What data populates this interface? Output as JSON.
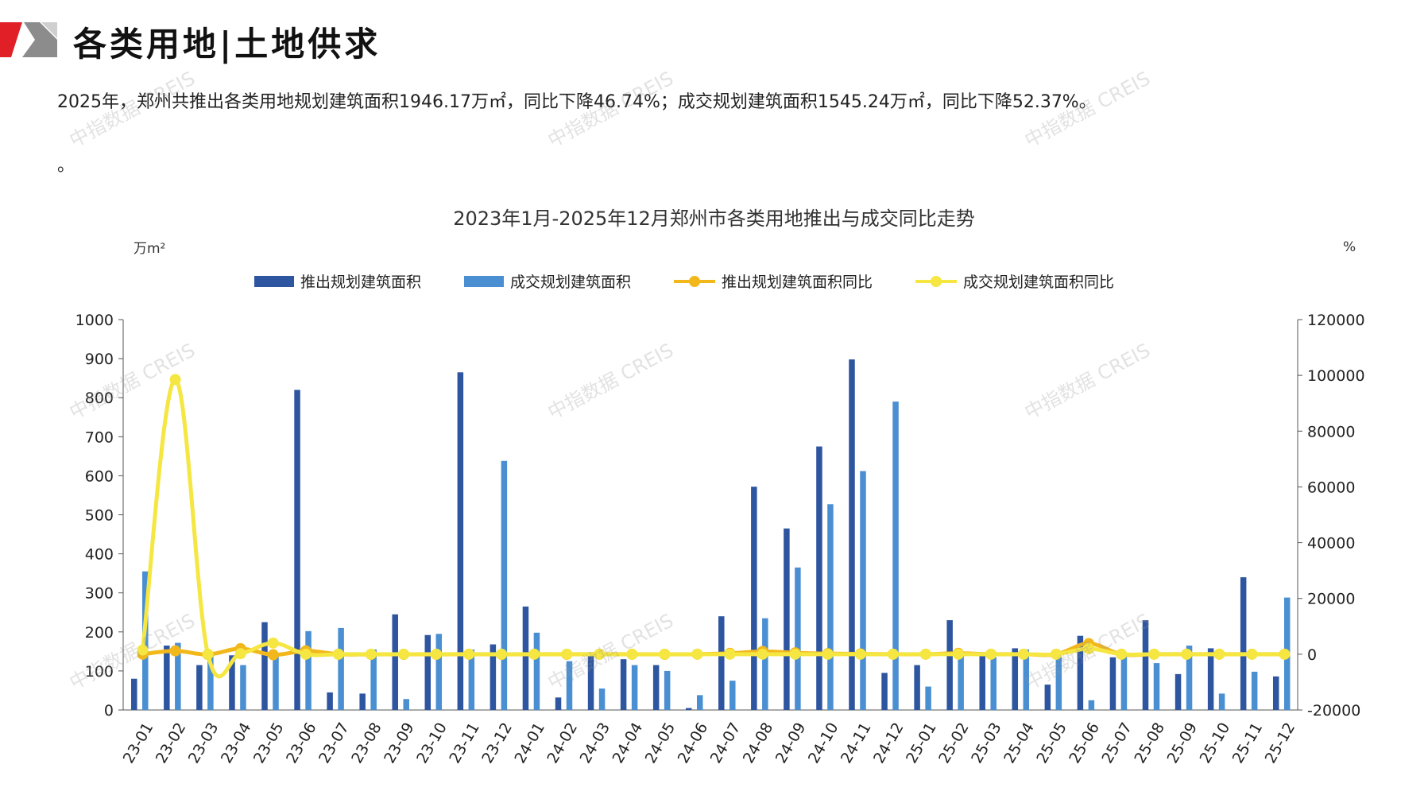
{
  "page": {
    "heading": "各类用地|土地供求",
    "summary": "2025年，郑州共推出各类用地规划建筑面积1946.17万㎡，同比下降46.74%；成交规划建筑面积1545.24万㎡，同比下降52.37%。",
    "dot_line": "。",
    "watermark": "中指数据 CREIS",
    "brand_colors": {
      "red": "#e01f26",
      "gray": "#7f7f7f",
      "light_gray": "#c8c8c8"
    }
  },
  "chart_data": {
    "type": "bar",
    "title": "2023年1月-2025年12月郑州市各类用地推出与成交同比走势",
    "y_left_unit": "万m²",
    "y_right_unit": "%",
    "ylim_left": [
      0,
      1000
    ],
    "yticks_left": [
      "0",
      "100",
      "200",
      "300",
      "400",
      "500",
      "600",
      "700",
      "800",
      "900",
      "1000"
    ],
    "ylim_right": [
      -20000,
      120000
    ],
    "yticks_right": [
      "-20000",
      "0",
      "20000",
      "40000",
      "60000",
      "80000",
      "100000",
      "120000"
    ],
    "grid": false,
    "legend_position": "top",
    "categories": [
      "23-01",
      "23-02",
      "23-03",
      "23-04",
      "23-05",
      "23-06",
      "23-07",
      "23-08",
      "23-09",
      "23-10",
      "23-11",
      "23-12",
      "24-01",
      "24-02",
      "24-03",
      "24-04",
      "24-05",
      "24-06",
      "24-07",
      "24-08",
      "24-09",
      "24-10",
      "24-11",
      "24-12",
      "25-01",
      "25-02",
      "25-03",
      "25-04",
      "25-05",
      "25-06",
      "25-07",
      "25-08",
      "25-09",
      "25-10",
      "25-11",
      "25-12"
    ],
    "series": [
      {
        "name": "推出规划建筑面积",
        "type": "bar",
        "axis": "left",
        "color": "#2e55a0",
        "values": [
          80,
          165,
          115,
          140,
          225,
          820,
          45,
          42,
          245,
          192,
          865,
          168,
          265,
          32,
          148,
          130,
          115,
          5,
          240,
          572,
          465,
          675,
          898,
          95,
          115,
          230,
          138,
          158,
          65,
          190,
          135,
          230,
          92,
          158,
          340,
          86
        ]
      },
      {
        "name": "成交规划建筑面积",
        "type": "bar",
        "axis": "left",
        "color": "#4a8fd2",
        "values": [
          355,
          172,
          145,
          115,
          140,
          202,
          210,
          155,
          28,
          195,
          155,
          638,
          198,
          125,
          55,
          115,
          100,
          38,
          75,
          235,
          365,
          527,
          612,
          790,
          60,
          138,
          135,
          155,
          135,
          25,
          140,
          120,
          165,
          42,
          98,
          288
        ]
      },
      {
        "name": "推出规划建筑面积同比",
        "type": "line",
        "axis": "right",
        "color": "#f2b81b",
        "values": [
          0,
          1200,
          -100,
          2000,
          -200,
          1200,
          0,
          -60,
          -50,
          -60,
          0,
          -60,
          0,
          -40,
          0,
          -20,
          -40,
          0,
          300,
          1000,
          500,
          200,
          100,
          0,
          0,
          300,
          0,
          0,
          0,
          3800,
          0,
          0,
          0,
          0,
          0,
          0
        ]
      },
      {
        "name": "成交规划建筑面积同比",
        "type": "line",
        "axis": "right",
        "color": "#f5e642",
        "values": [
          1500,
          98500,
          0,
          200,
          4000,
          0,
          0,
          0,
          0,
          0,
          0,
          0,
          0,
          0,
          0,
          0,
          0,
          0,
          0,
          0,
          0,
          0,
          0,
          0,
          0,
          0,
          0,
          0,
          0,
          2000,
          0,
          0,
          0,
          0,
          0,
          0
        ]
      }
    ]
  }
}
